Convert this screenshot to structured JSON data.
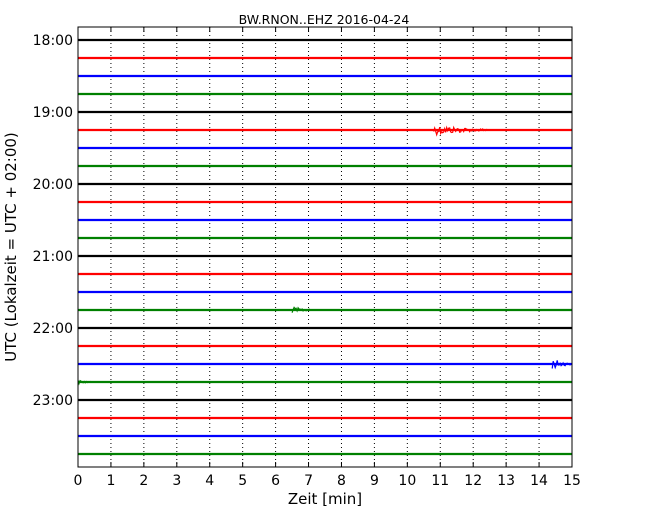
{
  "chart_data": {
    "type": "line",
    "title": "BW.RNON..EHZ 2016-04-24",
    "xlabel": "Zeit  [min]",
    "ylabel": "UTC (Lokalzeit = UTC + 02:00)",
    "xlim": [
      0,
      15
    ],
    "x_ticks": [
      "0",
      "1",
      "2",
      "3",
      "4",
      "5",
      "6",
      "7",
      "8",
      "9",
      "10",
      "11",
      "12",
      "13",
      "14",
      "15"
    ],
    "y_tick_labels": [
      "18:00",
      "19:00",
      "20:00",
      "21:00",
      "22:00",
      "23:00"
    ],
    "grid": {
      "x": "dotted",
      "y": false
    },
    "trace_colors": [
      "#000000",
      "#ff0000",
      "#0000ff",
      "#008000"
    ],
    "traces": [
      {
        "start": "18:00",
        "color": "#000000",
        "events": []
      },
      {
        "start": "18:15",
        "color": "#ff0000",
        "events": []
      },
      {
        "start": "18:30",
        "color": "#0000ff",
        "events": []
      },
      {
        "start": "18:45",
        "color": "#008000",
        "events": []
      },
      {
        "start": "19:00",
        "color": "#000000",
        "events": []
      },
      {
        "start": "19:15",
        "color": "#ff0000",
        "events": [
          {
            "x": 10.8,
            "end": 12.5,
            "amplitude": 5
          }
        ]
      },
      {
        "start": "19:30",
        "color": "#0000ff",
        "events": []
      },
      {
        "start": "19:45",
        "color": "#008000",
        "events": []
      },
      {
        "start": "20:00",
        "color": "#000000",
        "events": []
      },
      {
        "start": "20:15",
        "color": "#ff0000",
        "events": []
      },
      {
        "start": "20:30",
        "color": "#0000ff",
        "events": []
      },
      {
        "start": "20:45",
        "color": "#008000",
        "events": []
      },
      {
        "start": "21:00",
        "color": "#000000",
        "events": []
      },
      {
        "start": "21:15",
        "color": "#ff0000",
        "events": []
      },
      {
        "start": "21:30",
        "color": "#0000ff",
        "events": []
      },
      {
        "start": "21:45",
        "color": "#008000",
        "events": [
          {
            "x": 6.5,
            "end": 7.2,
            "amplitude": 3
          }
        ]
      },
      {
        "start": "22:00",
        "color": "#000000",
        "events": []
      },
      {
        "start": "22:15",
        "color": "#ff0000",
        "events": []
      },
      {
        "start": "22:30",
        "color": "#0000ff",
        "events": [
          {
            "x": 14.4,
            "end": 15.0,
            "amplitude": 5
          }
        ]
      },
      {
        "start": "22:45",
        "color": "#008000",
        "events": [
          {
            "x": 0.0,
            "end": 0.5,
            "amplitude": 2
          }
        ]
      },
      {
        "start": "23:00",
        "color": "#000000",
        "events": []
      },
      {
        "start": "23:15",
        "color": "#ff0000",
        "events": []
      },
      {
        "start": "23:30",
        "color": "#0000ff",
        "events": []
      },
      {
        "start": "23:45",
        "color": "#008000",
        "events": []
      }
    ]
  }
}
